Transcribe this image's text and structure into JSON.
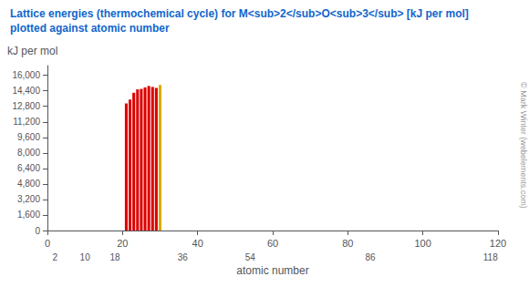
{
  "chart_data": {
    "type": "bar",
    "title": "Lattice energies (thermochemical cycle) for M<sub>2</sub>O<sub>3</sub> [kJ per mol]",
    "subtitle": "plotted against atomic number",
    "xlabel": "atomic number",
    "ylabel": "kJ per mol",
    "x": [
      21,
      22,
      23,
      24,
      25,
      26,
      27,
      28,
      29,
      30
    ],
    "values": [
      13100,
      13500,
      14200,
      14550,
      14600,
      14750,
      14900,
      14800,
      14700,
      15000
    ],
    "colors": [
      "#dd0000",
      "#dd0000",
      "#dd0000",
      "#dd0000",
      "#dd0000",
      "#dd0000",
      "#dd0000",
      "#dd0000",
      "#dd0000",
      "#ddaa00"
    ],
    "xlim": [
      0,
      120
    ],
    "xticks": [
      0,
      20,
      40,
      60,
      80,
      100,
      120
    ],
    "x2lim": [
      0,
      120
    ],
    "x2ticks": [
      2,
      10,
      18,
      36,
      54,
      86,
      118
    ],
    "ylim": [
      0,
      17000
    ],
    "yticks": [
      0,
      1600,
      3200,
      4800,
      6400,
      8000,
      9600,
      11200,
      12800,
      14400,
      16000
    ],
    "annotations": [
      "© Mark Winter (webelements.com)"
    ],
    "grid": false
  }
}
